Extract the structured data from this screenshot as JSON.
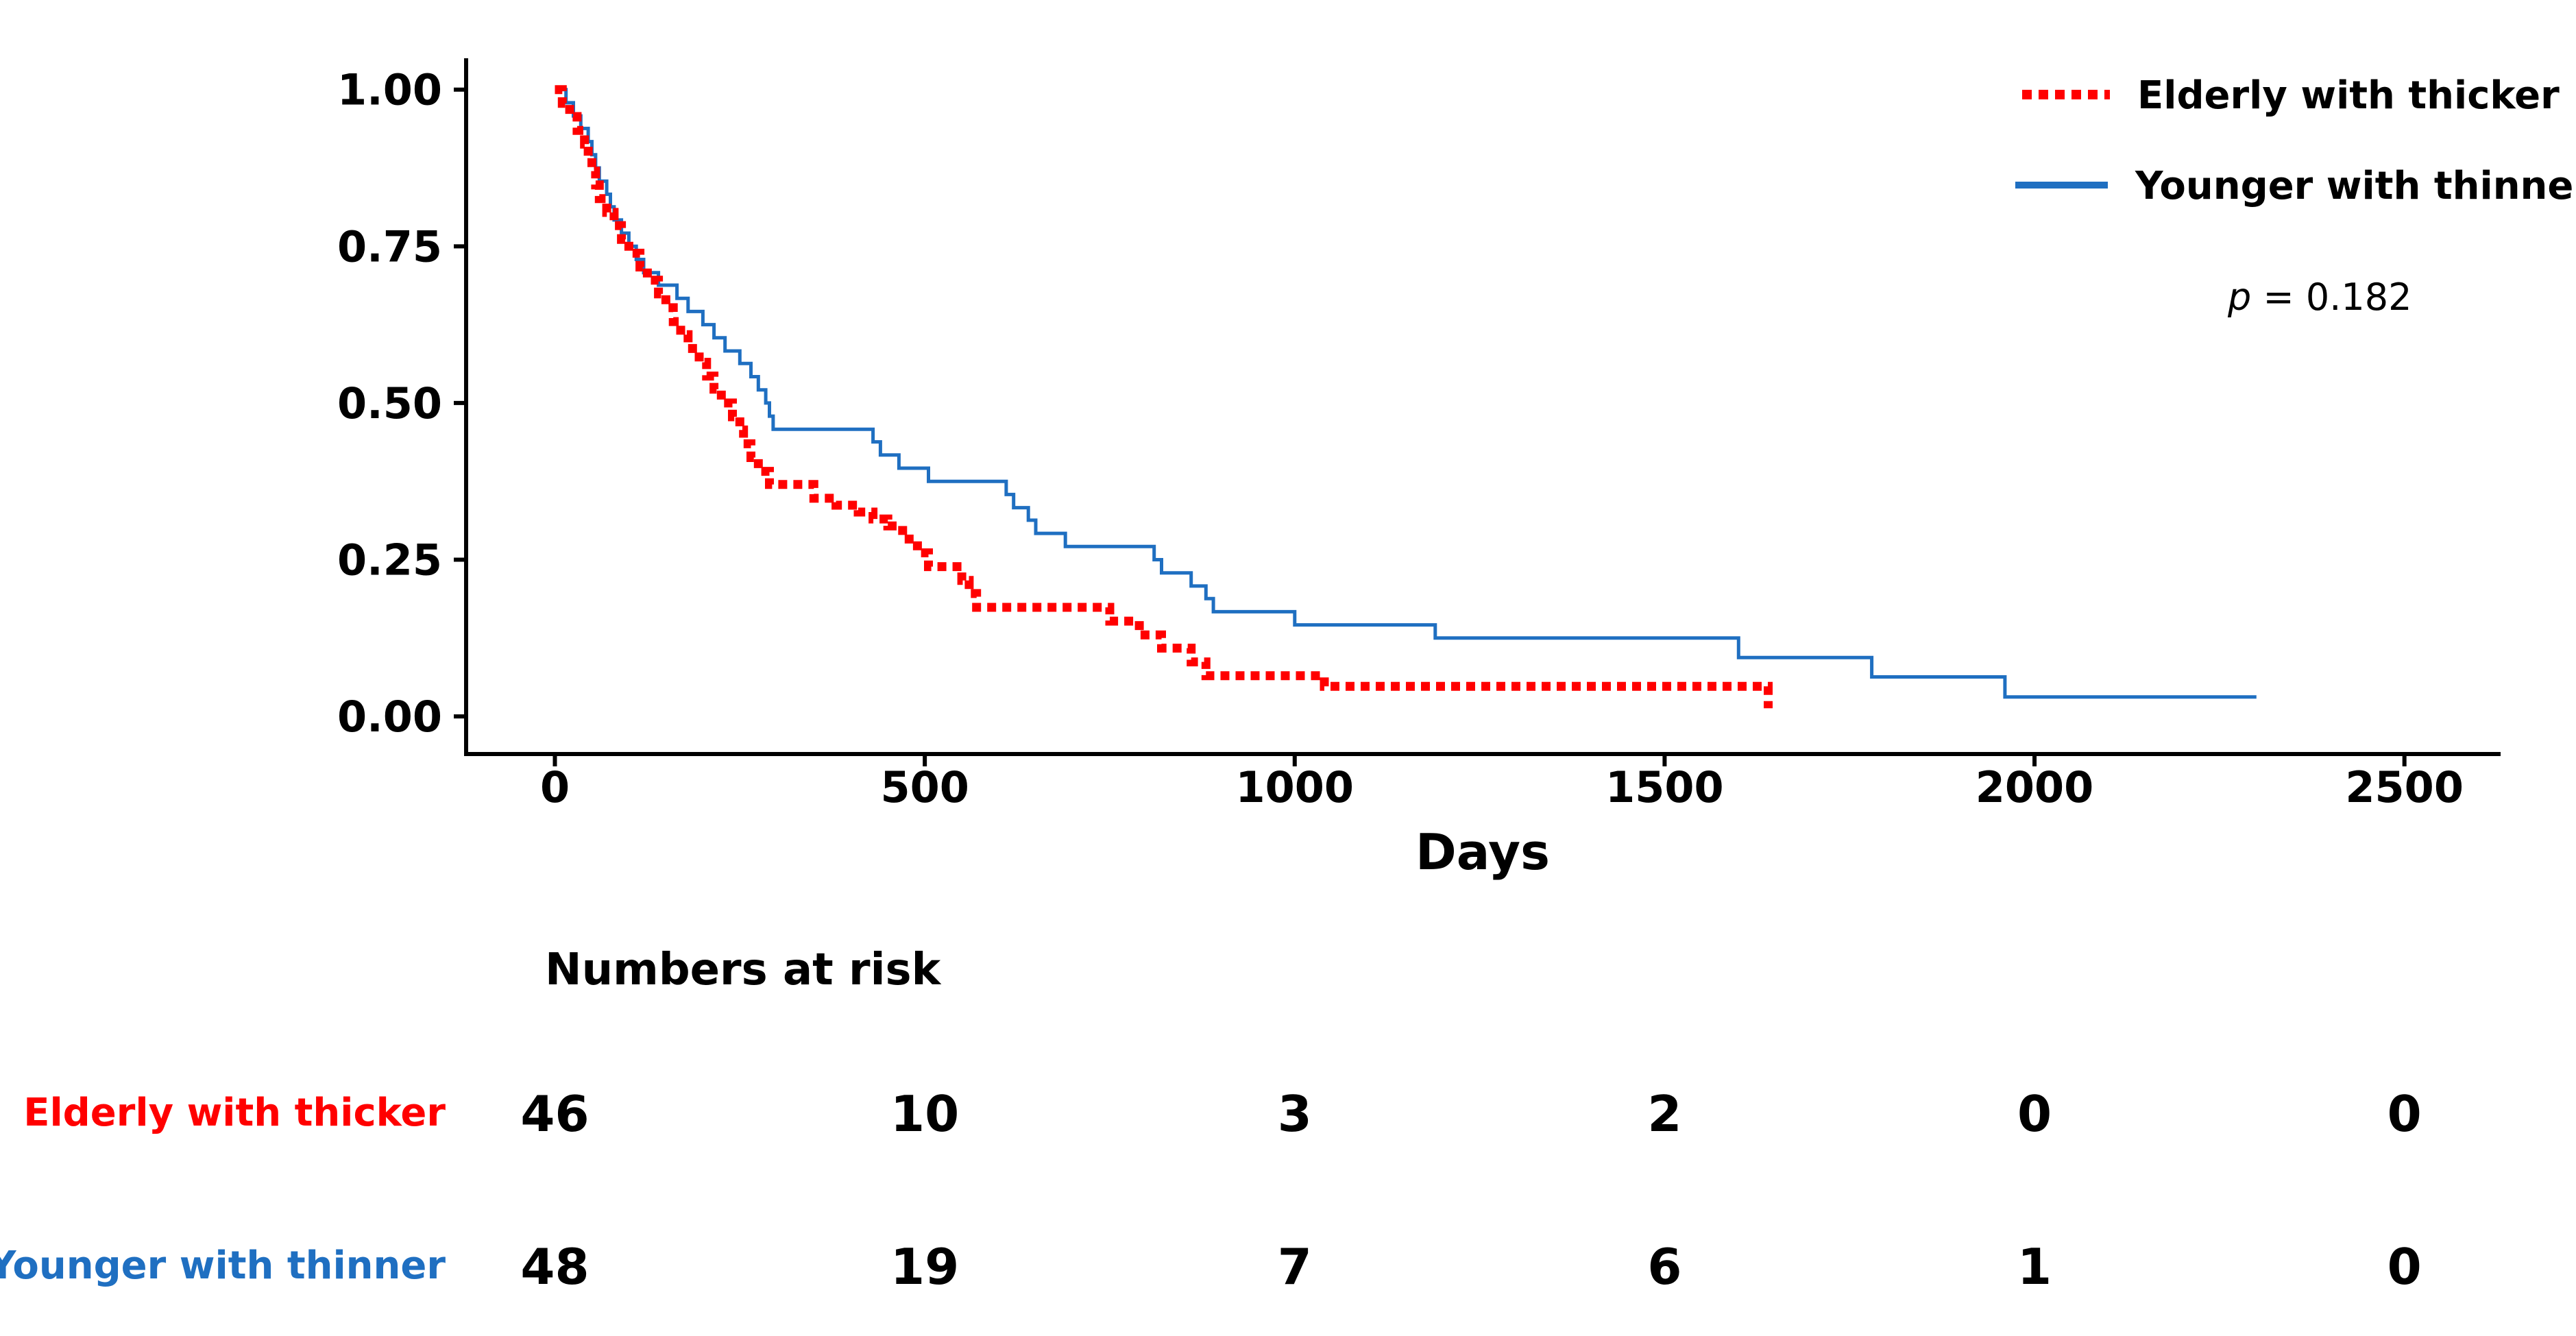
{
  "chart_data": {
    "type": "line",
    "chart_kind": "kaplan-meier",
    "title": "",
    "xlabel": "Days",
    "ylabel": "",
    "xlim": [
      -120,
      2630
    ],
    "ylim": [
      -0.06,
      1.05
    ],
    "x_ticks": [
      0,
      500,
      1000,
      1500,
      2000,
      2500
    ],
    "x_tick_labels": [
      "0",
      "500",
      "1000",
      "1500",
      "2000",
      "2500"
    ],
    "y_ticks": [
      0,
      0.25,
      0.5,
      0.75,
      1.0
    ],
    "y_tick_labels": [
      "0.00",
      "0.25",
      "0.50",
      "0.75",
      "1.00"
    ],
    "grid": false,
    "legend_position": "top-right",
    "annotation": {
      "p_label": "p",
      "p_text": " = 0.182"
    },
    "series": [
      {
        "name": "Elderly with thicker",
        "color": "#ff0000",
        "line_style": "dotted",
        "points": [
          [
            0,
            1.0
          ],
          [
            10,
            0.978
          ],
          [
            20,
            0.957
          ],
          [
            30,
            0.935
          ],
          [
            40,
            0.913
          ],
          [
            45,
            0.891
          ],
          [
            50,
            0.87
          ],
          [
            55,
            0.848
          ],
          [
            60,
            0.826
          ],
          [
            70,
            0.804
          ],
          [
            80,
            0.783
          ],
          [
            90,
            0.761
          ],
          [
            100,
            0.739
          ],
          [
            115,
            0.717
          ],
          [
            125,
            0.696
          ],
          [
            140,
            0.674
          ],
          [
            150,
            0.652
          ],
          [
            160,
            0.63
          ],
          [
            170,
            0.609
          ],
          [
            180,
            0.587
          ],
          [
            195,
            0.565
          ],
          [
            205,
            0.543
          ],
          [
            215,
            0.522
          ],
          [
            225,
            0.5
          ],
          [
            240,
            0.478
          ],
          [
            250,
            0.457
          ],
          [
            255,
            0.435
          ],
          [
            265,
            0.413
          ],
          [
            275,
            0.391
          ],
          [
            290,
            0.37
          ],
          [
            350,
            0.348
          ],
          [
            380,
            0.337
          ],
          [
            410,
            0.326
          ],
          [
            430,
            0.315
          ],
          [
            450,
            0.304
          ],
          [
            470,
            0.283
          ],
          [
            490,
            0.261
          ],
          [
            505,
            0.239
          ],
          [
            550,
            0.217
          ],
          [
            560,
            0.196
          ],
          [
            570,
            0.174
          ],
          [
            750,
            0.152
          ],
          [
            790,
            0.13
          ],
          [
            820,
            0.109
          ],
          [
            860,
            0.087
          ],
          [
            880,
            0.065
          ],
          [
            1040,
            0.048
          ],
          [
            1640,
            0.013
          ]
        ]
      },
      {
        "name": "Younger with thinner",
        "color": "#1f6fc1",
        "line_style": "solid",
        "points": [
          [
            0,
            1.0
          ],
          [
            15,
            0.979
          ],
          [
            25,
            0.958
          ],
          [
            35,
            0.938
          ],
          [
            45,
            0.917
          ],
          [
            50,
            0.896
          ],
          [
            55,
            0.875
          ],
          [
            60,
            0.854
          ],
          [
            70,
            0.833
          ],
          [
            75,
            0.813
          ],
          [
            80,
            0.792
          ],
          [
            90,
            0.771
          ],
          [
            100,
            0.75
          ],
          [
            110,
            0.729
          ],
          [
            120,
            0.708
          ],
          [
            140,
            0.688
          ],
          [
            165,
            0.667
          ],
          [
            180,
            0.646
          ],
          [
            200,
            0.625
          ],
          [
            215,
            0.604
          ],
          [
            230,
            0.583
          ],
          [
            250,
            0.563
          ],
          [
            265,
            0.542
          ],
          [
            275,
            0.521
          ],
          [
            285,
            0.5
          ],
          [
            290,
            0.479
          ],
          [
            295,
            0.458
          ],
          [
            430,
            0.438
          ],
          [
            440,
            0.417
          ],
          [
            465,
            0.396
          ],
          [
            505,
            0.375
          ],
          [
            610,
            0.354
          ],
          [
            620,
            0.333
          ],
          [
            640,
            0.313
          ],
          [
            650,
            0.292
          ],
          [
            690,
            0.271
          ],
          [
            810,
            0.25
          ],
          [
            820,
            0.229
          ],
          [
            860,
            0.208
          ],
          [
            880,
            0.188
          ],
          [
            890,
            0.167
          ],
          [
            1000,
            0.146
          ],
          [
            1190,
            0.125
          ],
          [
            1600,
            0.094
          ],
          [
            1780,
            0.063
          ],
          [
            1960,
            0.031
          ],
          [
            2300,
            0.031
          ]
        ]
      }
    ],
    "risk_table": {
      "title": "Numbers at risk",
      "time_points": [
        0,
        500,
        1000,
        1500,
        2000,
        2500
      ],
      "rows": [
        {
          "name": "Elderly with thicker",
          "color": "#ff0000",
          "values": [
            "46",
            "10",
            "3",
            "2",
            "0",
            "0"
          ]
        },
        {
          "name": "Younger with thinner",
          "color": "#1f6fc1",
          "values": [
            "48",
            "19",
            "7",
            "6",
            "1",
            "0"
          ]
        }
      ]
    }
  }
}
